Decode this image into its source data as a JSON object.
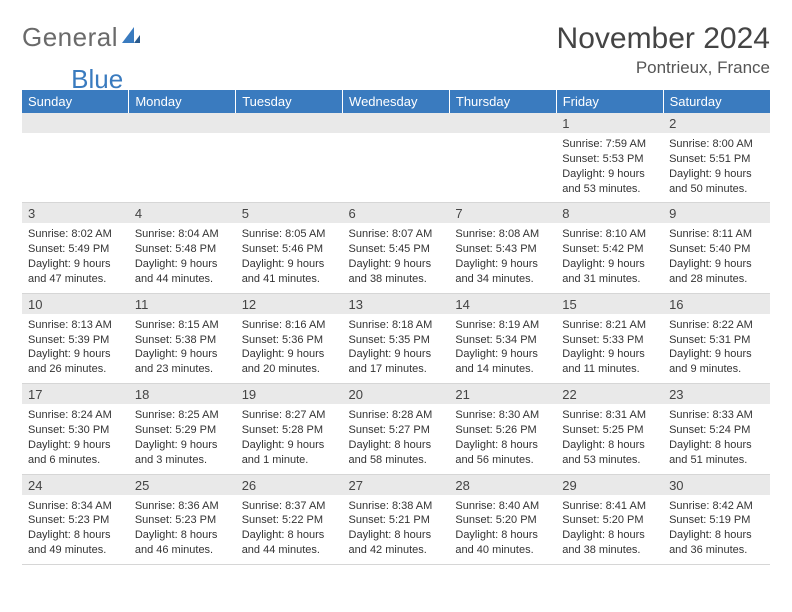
{
  "logo": {
    "text1": "General",
    "text2": "Blue"
  },
  "title": "November 2024",
  "location": "Pontrieux, France",
  "colors": {
    "header_bg": "#3a7bbf",
    "header_text": "#ffffff",
    "daynum_bg": "#e9e9e9",
    "text": "#333333",
    "month_title": "#444444",
    "logo_gray": "#6a6a6a",
    "logo_blue": "#3a7bbf"
  },
  "day_headers": [
    "Sunday",
    "Monday",
    "Tuesday",
    "Wednesday",
    "Thursday",
    "Friday",
    "Saturday"
  ],
  "weeks": [
    [
      {
        "n": "",
        "sunrise": "",
        "sunset": "",
        "daylight": ""
      },
      {
        "n": "",
        "sunrise": "",
        "sunset": "",
        "daylight": ""
      },
      {
        "n": "",
        "sunrise": "",
        "sunset": "",
        "daylight": ""
      },
      {
        "n": "",
        "sunrise": "",
        "sunset": "",
        "daylight": ""
      },
      {
        "n": "",
        "sunrise": "",
        "sunset": "",
        "daylight": ""
      },
      {
        "n": "1",
        "sunrise": "Sunrise: 7:59 AM",
        "sunset": "Sunset: 5:53 PM",
        "daylight": "Daylight: 9 hours and 53 minutes."
      },
      {
        "n": "2",
        "sunrise": "Sunrise: 8:00 AM",
        "sunset": "Sunset: 5:51 PM",
        "daylight": "Daylight: 9 hours and 50 minutes."
      }
    ],
    [
      {
        "n": "3",
        "sunrise": "Sunrise: 8:02 AM",
        "sunset": "Sunset: 5:49 PM",
        "daylight": "Daylight: 9 hours and 47 minutes."
      },
      {
        "n": "4",
        "sunrise": "Sunrise: 8:04 AM",
        "sunset": "Sunset: 5:48 PM",
        "daylight": "Daylight: 9 hours and 44 minutes."
      },
      {
        "n": "5",
        "sunrise": "Sunrise: 8:05 AM",
        "sunset": "Sunset: 5:46 PM",
        "daylight": "Daylight: 9 hours and 41 minutes."
      },
      {
        "n": "6",
        "sunrise": "Sunrise: 8:07 AM",
        "sunset": "Sunset: 5:45 PM",
        "daylight": "Daylight: 9 hours and 38 minutes."
      },
      {
        "n": "7",
        "sunrise": "Sunrise: 8:08 AM",
        "sunset": "Sunset: 5:43 PM",
        "daylight": "Daylight: 9 hours and 34 minutes."
      },
      {
        "n": "8",
        "sunrise": "Sunrise: 8:10 AM",
        "sunset": "Sunset: 5:42 PM",
        "daylight": "Daylight: 9 hours and 31 minutes."
      },
      {
        "n": "9",
        "sunrise": "Sunrise: 8:11 AM",
        "sunset": "Sunset: 5:40 PM",
        "daylight": "Daylight: 9 hours and 28 minutes."
      }
    ],
    [
      {
        "n": "10",
        "sunrise": "Sunrise: 8:13 AM",
        "sunset": "Sunset: 5:39 PM",
        "daylight": "Daylight: 9 hours and 26 minutes."
      },
      {
        "n": "11",
        "sunrise": "Sunrise: 8:15 AM",
        "sunset": "Sunset: 5:38 PM",
        "daylight": "Daylight: 9 hours and 23 minutes."
      },
      {
        "n": "12",
        "sunrise": "Sunrise: 8:16 AM",
        "sunset": "Sunset: 5:36 PM",
        "daylight": "Daylight: 9 hours and 20 minutes."
      },
      {
        "n": "13",
        "sunrise": "Sunrise: 8:18 AM",
        "sunset": "Sunset: 5:35 PM",
        "daylight": "Daylight: 9 hours and 17 minutes."
      },
      {
        "n": "14",
        "sunrise": "Sunrise: 8:19 AM",
        "sunset": "Sunset: 5:34 PM",
        "daylight": "Daylight: 9 hours and 14 minutes."
      },
      {
        "n": "15",
        "sunrise": "Sunrise: 8:21 AM",
        "sunset": "Sunset: 5:33 PM",
        "daylight": "Daylight: 9 hours and 11 minutes."
      },
      {
        "n": "16",
        "sunrise": "Sunrise: 8:22 AM",
        "sunset": "Sunset: 5:31 PM",
        "daylight": "Daylight: 9 hours and 9 minutes."
      }
    ],
    [
      {
        "n": "17",
        "sunrise": "Sunrise: 8:24 AM",
        "sunset": "Sunset: 5:30 PM",
        "daylight": "Daylight: 9 hours and 6 minutes."
      },
      {
        "n": "18",
        "sunrise": "Sunrise: 8:25 AM",
        "sunset": "Sunset: 5:29 PM",
        "daylight": "Daylight: 9 hours and 3 minutes."
      },
      {
        "n": "19",
        "sunrise": "Sunrise: 8:27 AM",
        "sunset": "Sunset: 5:28 PM",
        "daylight": "Daylight: 9 hours and 1 minute."
      },
      {
        "n": "20",
        "sunrise": "Sunrise: 8:28 AM",
        "sunset": "Sunset: 5:27 PM",
        "daylight": "Daylight: 8 hours and 58 minutes."
      },
      {
        "n": "21",
        "sunrise": "Sunrise: 8:30 AM",
        "sunset": "Sunset: 5:26 PM",
        "daylight": "Daylight: 8 hours and 56 minutes."
      },
      {
        "n": "22",
        "sunrise": "Sunrise: 8:31 AM",
        "sunset": "Sunset: 5:25 PM",
        "daylight": "Daylight: 8 hours and 53 minutes."
      },
      {
        "n": "23",
        "sunrise": "Sunrise: 8:33 AM",
        "sunset": "Sunset: 5:24 PM",
        "daylight": "Daylight: 8 hours and 51 minutes."
      }
    ],
    [
      {
        "n": "24",
        "sunrise": "Sunrise: 8:34 AM",
        "sunset": "Sunset: 5:23 PM",
        "daylight": "Daylight: 8 hours and 49 minutes."
      },
      {
        "n": "25",
        "sunrise": "Sunrise: 8:36 AM",
        "sunset": "Sunset: 5:23 PM",
        "daylight": "Daylight: 8 hours and 46 minutes."
      },
      {
        "n": "26",
        "sunrise": "Sunrise: 8:37 AM",
        "sunset": "Sunset: 5:22 PM",
        "daylight": "Daylight: 8 hours and 44 minutes."
      },
      {
        "n": "27",
        "sunrise": "Sunrise: 8:38 AM",
        "sunset": "Sunset: 5:21 PM",
        "daylight": "Daylight: 8 hours and 42 minutes."
      },
      {
        "n": "28",
        "sunrise": "Sunrise: 8:40 AM",
        "sunset": "Sunset: 5:20 PM",
        "daylight": "Daylight: 8 hours and 40 minutes."
      },
      {
        "n": "29",
        "sunrise": "Sunrise: 8:41 AM",
        "sunset": "Sunset: 5:20 PM",
        "daylight": "Daylight: 8 hours and 38 minutes."
      },
      {
        "n": "30",
        "sunrise": "Sunrise: 8:42 AM",
        "sunset": "Sunset: 5:19 PM",
        "daylight": "Daylight: 8 hours and 36 minutes."
      }
    ]
  ]
}
